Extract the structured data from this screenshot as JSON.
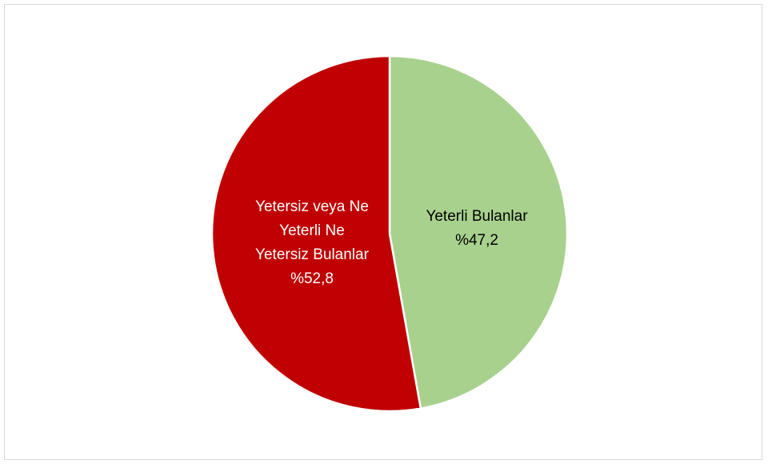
{
  "chart_data": {
    "type": "pie",
    "title": "",
    "slices": [
      {
        "label": "Yeterli Bulanlar",
        "label_lines": [
          "Yeterli Bulanlar"
        ],
        "value": 47.2,
        "value_label": "%47,2",
        "color": "#a9d18e",
        "label_color": "#000000"
      },
      {
        "label": "Yetersiz veya Ne Yeterli Ne Yetersiz Bulanlar",
        "label_lines": [
          "Yetersiz veya Ne",
          "Yeterli Ne",
          "Yetersiz Bulanlar"
        ],
        "value": 52.8,
        "value_label": "%52,8",
        "color": "#c00000",
        "label_color": "#ffffff"
      }
    ],
    "start_angle_deg": 0,
    "direction": "clockwise",
    "legend": "none",
    "separator_color": "#ffffff"
  }
}
